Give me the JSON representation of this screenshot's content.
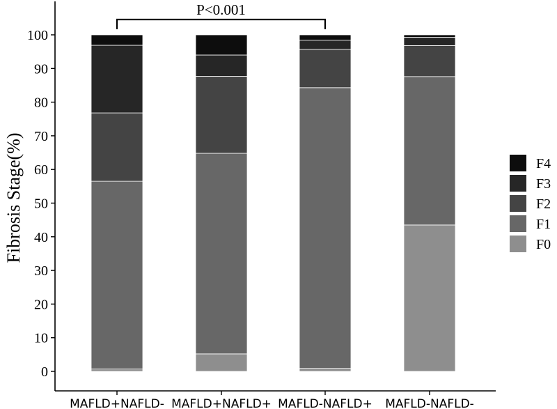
{
  "chart_data": {
    "type": "bar",
    "stacked": true,
    "ylabel": "Fibrosis Stage(%)",
    "ylim": [
      0,
      100
    ],
    "yticks": [
      "0",
      "10",
      "20",
      "30",
      "40",
      "50",
      "60",
      "70",
      "80",
      "90",
      "100"
    ],
    "categories": [
      "MAFLD+NAFLD-",
      "MAFLD+NAFLD+",
      "MAFLD-NAFLD+",
      "MAFLD-NAFLD-"
    ],
    "series": [
      {
        "name": "F0",
        "color": "#8e8e8e",
        "values": [
          0.7,
          5.2,
          0.9,
          43.5
        ]
      },
      {
        "name": "F1",
        "color": "#676767",
        "values": [
          55.8,
          59.6,
          83.4,
          44.1
        ]
      },
      {
        "name": "F2",
        "color": "#444444",
        "values": [
          20.3,
          22.9,
          11.4,
          9.2
        ]
      },
      {
        "name": "F3",
        "color": "#262626",
        "values": [
          20.1,
          6.3,
          2.7,
          2.5
        ]
      },
      {
        "name": "F4",
        "color": "#0d0d0d",
        "values": [
          3.1,
          6.0,
          1.6,
          0.7
        ]
      }
    ],
    "legend_order": [
      "F4",
      "F3",
      "F2",
      "F1",
      "F0"
    ],
    "legend_position": "right",
    "grid": false,
    "annotation": {
      "text": "P<0.001",
      "from_category": "MAFLD+NAFLD-",
      "to_category": "MAFLD-NAFLD+"
    }
  }
}
